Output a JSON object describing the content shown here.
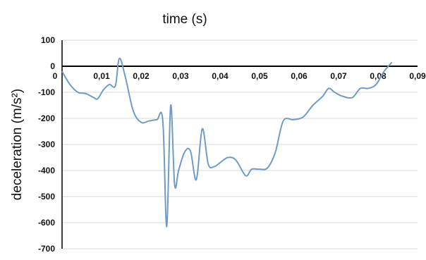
{
  "chart_data": {
    "type": "line",
    "title": "time (s)",
    "xlabel": "time (s)",
    "ylabel": "deceleration (m/s²)",
    "xlim": [
      0,
      0.09
    ],
    "ylim": [
      -700,
      100
    ],
    "x_ticks": [
      "0",
      "0,01",
      "0,02",
      "0,03",
      "0,04",
      "0,05",
      "0,06",
      "0,07",
      "0,08",
      "0,09"
    ],
    "y_ticks": [
      "100",
      "0",
      "-100",
      "-200",
      "-300",
      "-400",
      "-500",
      "-600",
      "-700"
    ],
    "grid": true,
    "line_color": "#6f9bc6",
    "series": [
      {
        "x": [
          0,
          0.002,
          0.004,
          0.006,
          0.008,
          0.009,
          0.0105,
          0.012,
          0.0135,
          0.0145,
          0.016,
          0.018,
          0.02,
          0.022,
          0.024,
          0.0255,
          0.0265,
          0.0275,
          0.0285,
          0.0295,
          0.031,
          0.0325,
          0.034,
          0.0355,
          0.037,
          0.0385,
          0.04,
          0.042,
          0.044,
          0.0465,
          0.048,
          0.05,
          0.052,
          0.054,
          0.056,
          0.0585,
          0.061,
          0.0635,
          0.066,
          0.0675,
          0.069,
          0.071,
          0.0735,
          0.0755,
          0.0775,
          0.0795,
          0.0815,
          0.0835
        ],
        "y": [
          -20,
          -70,
          -100,
          -105,
          -120,
          -125,
          -90,
          -70,
          -75,
          30,
          -40,
          -170,
          -215,
          -210,
          -205,
          -208,
          -615,
          -150,
          -455,
          -400,
          -330,
          -325,
          -435,
          -240,
          -375,
          -385,
          -370,
          -350,
          -360,
          -420,
          -395,
          -395,
          -390,
          -330,
          -210,
          -205,
          -195,
          -150,
          -115,
          -85,
          -100,
          -115,
          -120,
          -85,
          -85,
          -70,
          -20,
          15
        ]
      }
    ]
  }
}
